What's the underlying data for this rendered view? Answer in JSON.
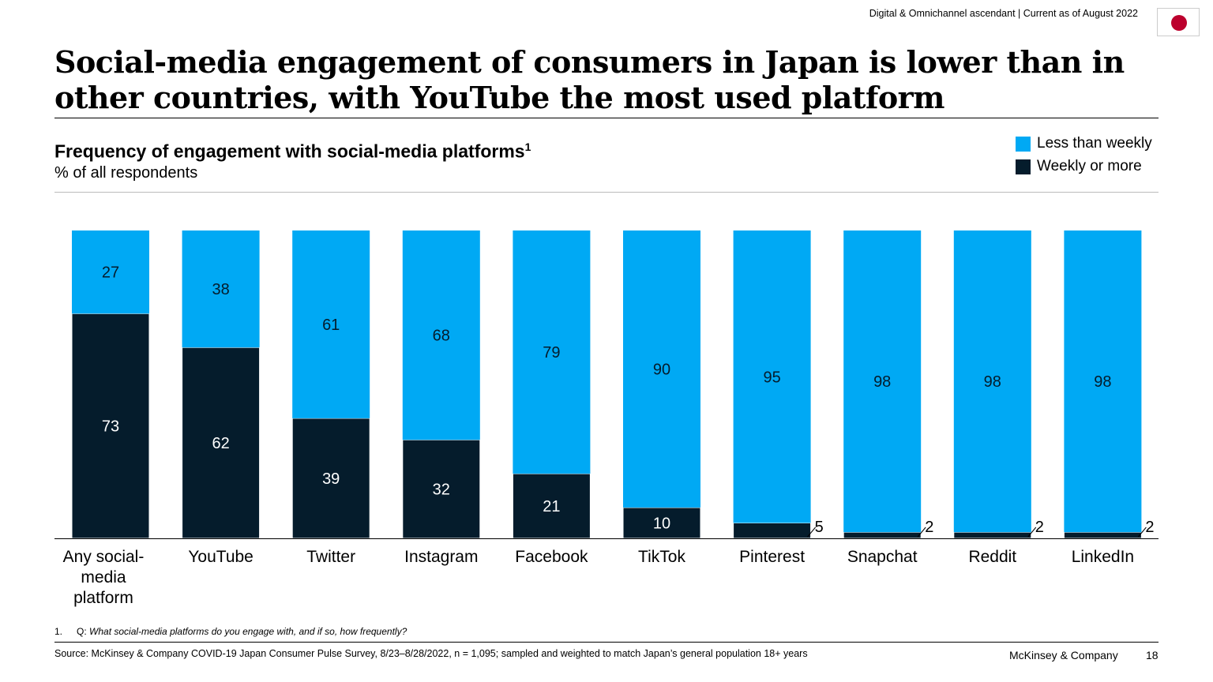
{
  "header": {
    "tracker": "Digital & Omnichannel ascendant | Current as of August 2022",
    "flag_icon": "japan-flag-icon"
  },
  "title": "Social-media engagement of consumers in Japan is lower than in other countries, with YouTube the most used platform",
  "footnote": {
    "number": "1.",
    "prefix": "Q:",
    "text": "What social-media platforms do you engage with, and if so, how frequently?"
  },
  "source": "Source: McKinsey & Company COVID-19 Japan Consumer Pulse Survey, 8/23–8/28/2022, n = 1,095; sampled and weighted to match Japan’s general population 18+ years",
  "brand": "McKinsey & Company",
  "page_number": "18",
  "chart_data": {
    "type": "bar",
    "stacked": true,
    "title": "Frequency of engagement with social-media platforms",
    "title_footnote": "1",
    "subtitle": "% of all respondents",
    "legend_position": "top-right",
    "categories": [
      "Any social-media platform",
      "YouTube",
      "Twitter",
      "Instagram",
      "Facebook",
      "TikTok",
      "Pinterest",
      "Snapchat",
      "Reddit",
      "LinkedIn"
    ],
    "series": [
      {
        "name": "Weekly or more",
        "color": "#051c2c",
        "values": [
          73,
          62,
          39,
          32,
          21,
          10,
          5,
          2,
          2,
          2
        ]
      },
      {
        "name": "Less than weekly",
        "color": "#00a9f4",
        "values": [
          27,
          38,
          61,
          68,
          79,
          90,
          95,
          98,
          98,
          98
        ]
      }
    ],
    "ylim": [
      0,
      100
    ],
    "grid": false
  }
}
